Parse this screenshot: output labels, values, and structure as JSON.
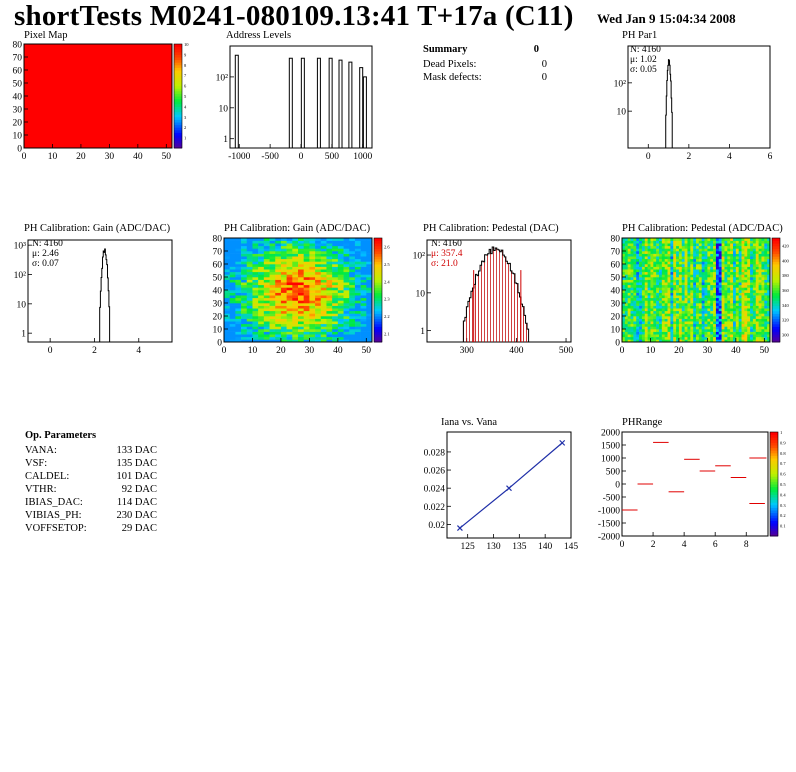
{
  "header": {
    "title": "shortTests M0241-080109.13:41 T+17a (C11)",
    "date": "Wed Jan  9 15:04:34 2008"
  },
  "summary": {
    "title": "Summary",
    "total": "0",
    "rows": [
      {
        "label": "Dead Pixels:",
        "value": "0"
      },
      {
        "label": "Mask defects:",
        "value": "0"
      }
    ]
  },
  "op_params": {
    "title": "Op. Parameters",
    "rows": [
      {
        "label": "VANA:",
        "value": "133 DAC"
      },
      {
        "label": "VSF:",
        "value": "135 DAC"
      },
      {
        "label": "CALDEL:",
        "value": "101 DAC"
      },
      {
        "label": "VTHR:",
        "value": "92 DAC"
      },
      {
        "label": "IBIAS_DAC:",
        "value": "114 DAC"
      },
      {
        "label": "VIBIAS_PH:",
        "value": "230 DAC"
      },
      {
        "label": "VOFFSETOP:",
        "value": "29 DAC"
      }
    ]
  },
  "chart_data": [
    {
      "id": "pixel-map",
      "type": "heatmap",
      "title": "Pixel Map",
      "xlim": [
        0,
        52
      ],
      "ylim": [
        0,
        80
      ],
      "xticks": [
        "0",
        "10",
        "20",
        "30",
        "40",
        "50"
      ],
      "yticks": [
        "0",
        "10",
        "20",
        "30",
        "40",
        "50",
        "60",
        "70",
        "80"
      ],
      "uniform_color": "#ff0000",
      "zlim": [
        0,
        10
      ],
      "zticks": [
        "1",
        "2",
        "3",
        "4",
        "5",
        "6",
        "7",
        "8",
        "9",
        "10"
      ]
    },
    {
      "id": "address-levels",
      "type": "bar",
      "title": "Address Levels",
      "xlim": [
        -1150,
        1150
      ],
      "log_y": true,
      "xticks": [
        "-1000",
        "-500",
        "0",
        "500",
        "1000"
      ],
      "yticks": [
        "1",
        "10",
        "10²"
      ],
      "peaks_x": [
        -1040,
        -165,
        30,
        290,
        480,
        640,
        800,
        975,
        1035
      ],
      "peak_heights": [
        500,
        400,
        400,
        400,
        400,
        350,
        300,
        200,
        100
      ]
    },
    {
      "id": "ph-par1",
      "type": "bar",
      "title": "PH Par1",
      "xlim": [
        -1,
        6
      ],
      "log_y": true,
      "xticks": [
        "0",
        "2",
        "4",
        "6"
      ],
      "yticks": [
        "10",
        "10²"
      ],
      "stats": [
        "N: 4160",
        "μ: 1.02",
        "σ: 0.05"
      ],
      "mean": 1.02,
      "sigma": 0.05
    },
    {
      "id": "ph-gain-1d",
      "type": "bar",
      "title": "PH Calibration: Gain (ADC/DAC)",
      "xlim": [
        -1,
        5.5
      ],
      "log_y": true,
      "xticks": [
        "0",
        "2",
        "4"
      ],
      "yticks": [
        "1",
        "10",
        "10²",
        "10³"
      ],
      "stats": [
        "N: 4160",
        "μ: 2.46",
        "σ: 0.07"
      ],
      "mean": 2.46,
      "sigma": 0.07
    },
    {
      "id": "ph-gain-map",
      "type": "heatmap",
      "title": "PH Calibration: Gain (ADC/DAC)",
      "xlim": [
        0,
        52
      ],
      "ylim": [
        0,
        80
      ],
      "xticks": [
        "0",
        "10",
        "20",
        "30",
        "40",
        "50"
      ],
      "yticks": [
        "0",
        "10",
        "20",
        "30",
        "40",
        "50",
        "60",
        "70",
        "80"
      ],
      "zlim": [
        2.05,
        2.65
      ],
      "zticks": [
        "2.1",
        "2.2",
        "2.3",
        "2.4",
        "2.5",
        "2.6"
      ]
    },
    {
      "id": "ph-pedestal-1d",
      "type": "bar",
      "title": "PH Calibration: Pedestal (DAC)",
      "xlim": [
        220,
        510
      ],
      "log_y": true,
      "xticks": [
        "300",
        "400",
        "500"
      ],
      "yticks": [
        "1",
        "10",
        "10²"
      ],
      "stats": [
        "N: 4160",
        "μ: 357.4",
        "σ: 21.0"
      ],
      "mean": 357.4,
      "sigma": 21.0,
      "markers": [
        314,
        409
      ]
    },
    {
      "id": "ph-pedestal-map",
      "type": "heatmap",
      "title": "PH Calibration: Pedestal (ADC/DAC)",
      "xlim": [
        0,
        52
      ],
      "ylim": [
        0,
        80
      ],
      "xticks": [
        "0",
        "10",
        "20",
        "30",
        "40",
        "50"
      ],
      "yticks": [
        "0",
        "10",
        "20",
        "30",
        "40",
        "50",
        "60",
        "70",
        "80"
      ],
      "zlim": [
        290,
        430
      ],
      "zticks": [
        "300",
        "320",
        "340",
        "360",
        "380",
        "400",
        "420"
      ]
    },
    {
      "id": "iana-vana",
      "type": "line",
      "title": "Iana vs. Vana",
      "xlim": [
        121,
        145
      ],
      "ylim": [
        0.0185,
        0.0302
      ],
      "xticks": [
        "125",
        "130",
        "135",
        "140",
        "145"
      ],
      "yticks": [
        "0.02",
        "0.022",
        "0.024",
        "0.026",
        "0.028"
      ],
      "x": [
        123.5,
        133,
        143.3
      ],
      "y": [
        0.0196,
        0.024,
        0.029
      ]
    },
    {
      "id": "ph-range",
      "type": "scatter",
      "title": "PHRange",
      "xlim": [
        0,
        9.4
      ],
      "ylim": [
        -2000,
        2000
      ],
      "xticks": [
        "0",
        "2",
        "4",
        "6",
        "8"
      ],
      "yticks": [
        "-2000",
        "-1500",
        "-1000",
        "-500",
        "0",
        "500",
        "1000",
        "1500",
        "2000"
      ],
      "x": [
        0.5,
        1.5,
        2.5,
        3.5,
        4.5,
        5.5,
        6.5,
        7.5,
        8.7
      ],
      "y": [
        -1000,
        0,
        1600,
        -300,
        950,
        500,
        700,
        250,
        -750
      ],
      "extra_y": [
        1000
      ],
      "zlim": [
        0,
        1
      ],
      "zticks": [
        "0.1",
        "0.2",
        "0.3",
        "0.4",
        "0.5",
        "0.6",
        "0.7",
        "0.8",
        "0.9",
        "1"
      ]
    }
  ]
}
